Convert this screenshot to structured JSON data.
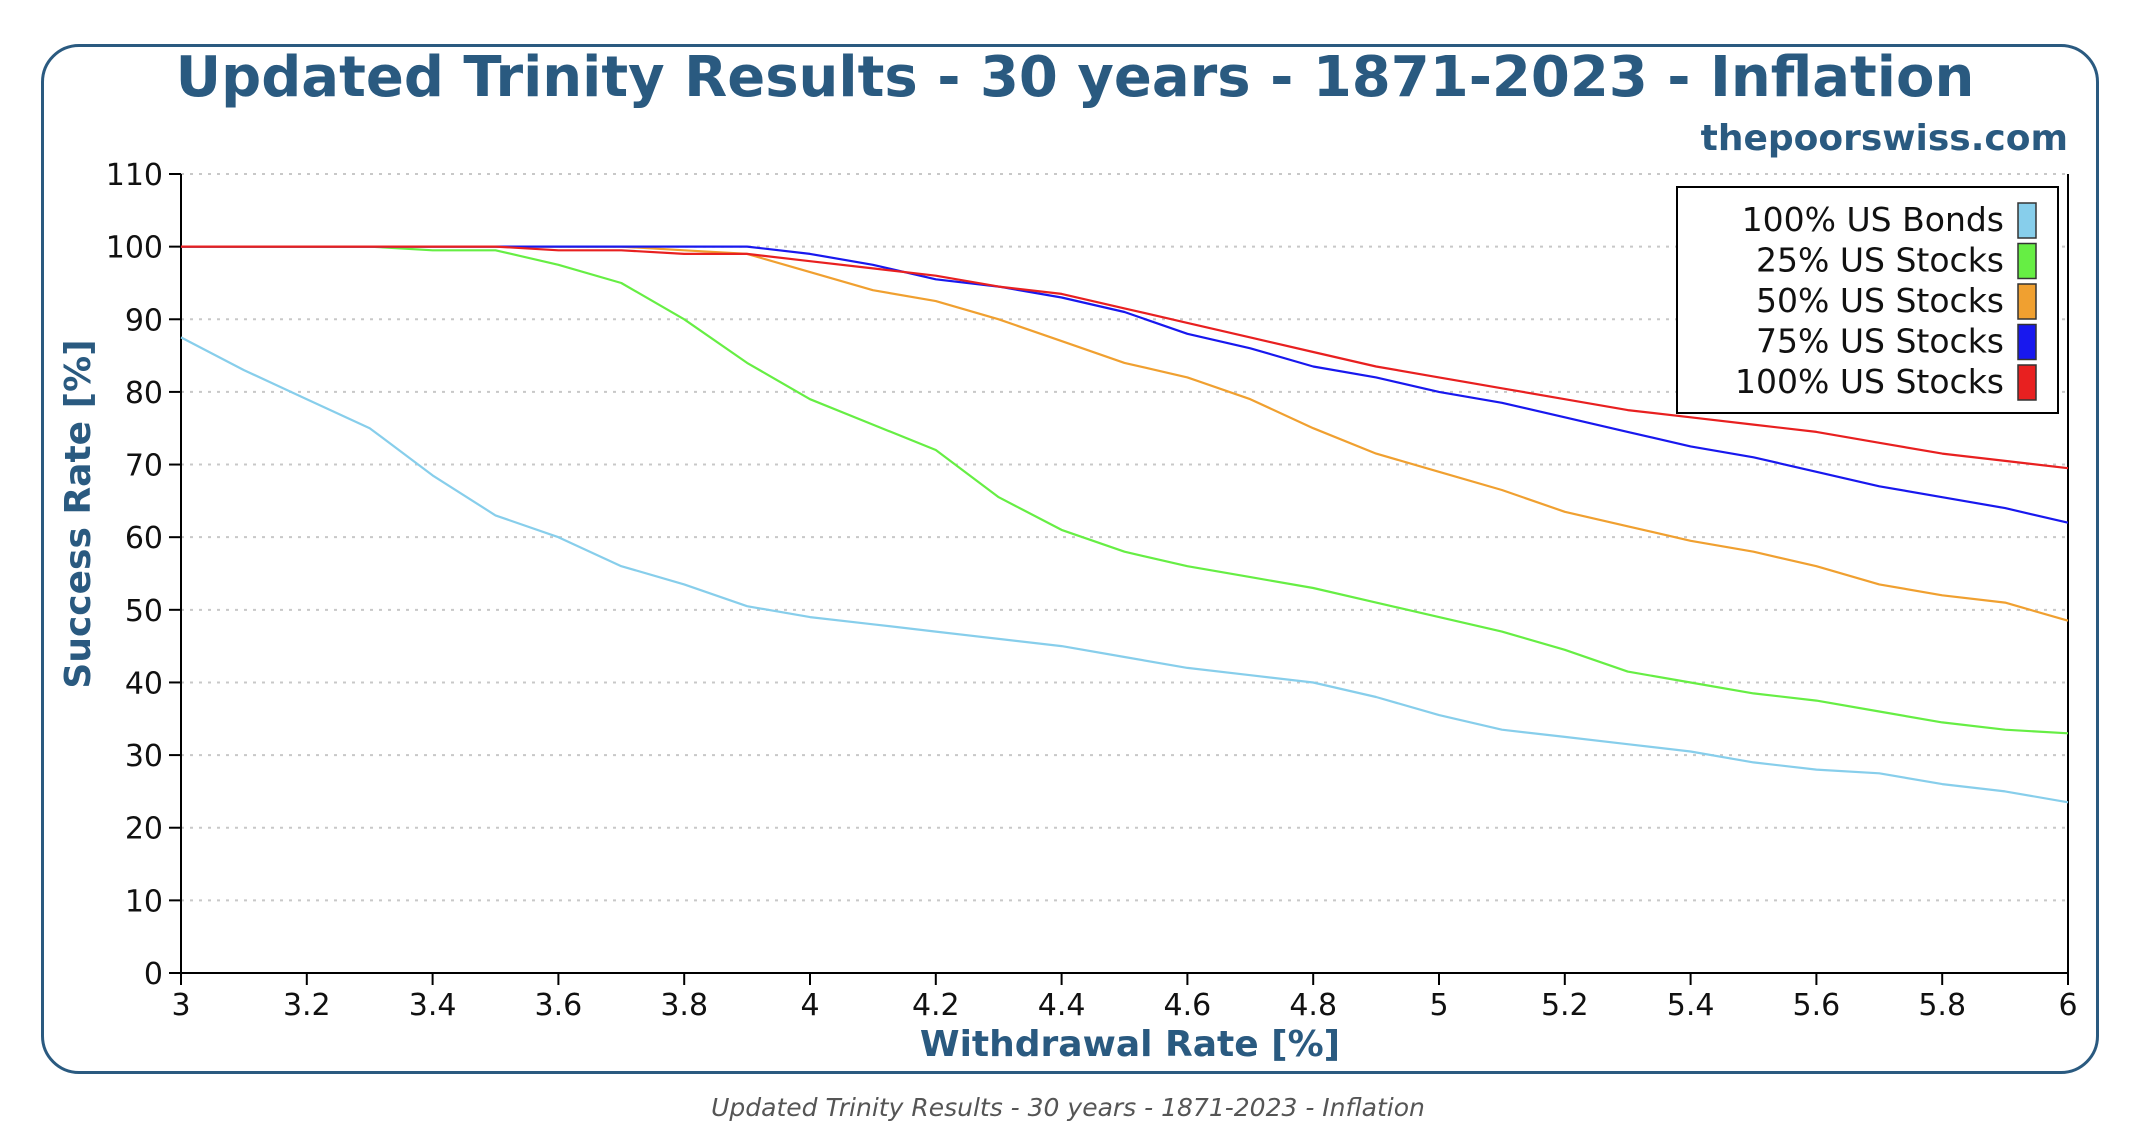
{
  "chart_data": {
    "type": "line",
    "title": "Updated Trinity Results - 30 years - 1871-2023 - Inflation",
    "subtitle": "thepoorswiss.com",
    "xlabel": "Withdrawal Rate [%]",
    "ylabel": "Success Rate [%]",
    "xlim": [
      3,
      6
    ],
    "ylim": [
      0,
      110
    ],
    "x_ticks": [
      "3",
      "3.2",
      "3.4",
      "3.6",
      "3.8",
      "4",
      "4.2",
      "4.4",
      "4.6",
      "4.8",
      "5",
      "5.2",
      "5.4",
      "5.6",
      "5.8",
      "6"
    ],
    "y_ticks": [
      "0",
      "10",
      "20",
      "30",
      "40",
      "50",
      "60",
      "70",
      "80",
      "90",
      "100",
      "110"
    ],
    "grid": "horizontal dotted",
    "legend_position": "top-right",
    "x": [
      3.0,
      3.1,
      3.2,
      3.3,
      3.4,
      3.5,
      3.6,
      3.7,
      3.8,
      3.9,
      4.0,
      4.1,
      4.2,
      4.3,
      4.4,
      4.5,
      4.6,
      4.7,
      4.8,
      4.9,
      5.0,
      5.1,
      5.2,
      5.3,
      5.4,
      5.5,
      5.6,
      5.7,
      5.8,
      5.9,
      6.0
    ],
    "series": [
      {
        "name": "100% US Bonds",
        "color": "#87ceeb",
        "values": [
          87.5,
          83,
          79,
          75,
          68.5,
          63,
          60,
          56,
          53.5,
          50.5,
          49,
          48,
          47,
          46,
          45,
          43.5,
          42,
          41,
          40,
          38,
          35.5,
          33.5,
          32.5,
          31.5,
          30.5,
          29,
          28,
          27.5,
          26,
          25,
          23.5
        ]
      },
      {
        "name": "25% US Stocks",
        "color": "#66ee44",
        "values": [
          100,
          100,
          100,
          100,
          99.5,
          99.5,
          97.5,
          95,
          90,
          84,
          79,
          75.5,
          72,
          65.5,
          61,
          58,
          56,
          54.5,
          53,
          51,
          49,
          47,
          44.5,
          41.5,
          40,
          38.5,
          37.5,
          36,
          34.5,
          33.5,
          33
        ]
      },
      {
        "name": "50% US Stocks",
        "color": "#f0a030",
        "values": [
          100,
          100,
          100,
          100,
          100,
          100,
          100,
          100,
          99.5,
          99,
          96.5,
          94,
          92.5,
          90,
          87,
          84,
          82,
          79,
          75,
          71.5,
          69,
          66.5,
          63.5,
          61.5,
          59.5,
          58,
          56,
          53.5,
          52,
          51,
          48.5
        ]
      },
      {
        "name": "75% US Stocks",
        "color": "#1818ee",
        "values": [
          100,
          100,
          100,
          100,
          100,
          100,
          100,
          100,
          100,
          100,
          99,
          97.5,
          95.5,
          94.5,
          93,
          91,
          88,
          86,
          83.5,
          82,
          80,
          78.5,
          76.5,
          74.5,
          72.5,
          71,
          69,
          67,
          65.5,
          64,
          62
        ]
      },
      {
        "name": "100% US Stocks",
        "color": "#e82020",
        "values": [
          100,
          100,
          100,
          100,
          100,
          100,
          99.5,
          99.5,
          99,
          99,
          98,
          97,
          96,
          94.5,
          93.5,
          91.5,
          89.5,
          87.5,
          85.5,
          83.5,
          82,
          80.5,
          79,
          77.5,
          76.5,
          75.5,
          74.5,
          73,
          71.5,
          70.5,
          69.5
        ]
      }
    ]
  },
  "caption": "Updated Trinity Results - 30 years - 1871-2023 - Inflation"
}
